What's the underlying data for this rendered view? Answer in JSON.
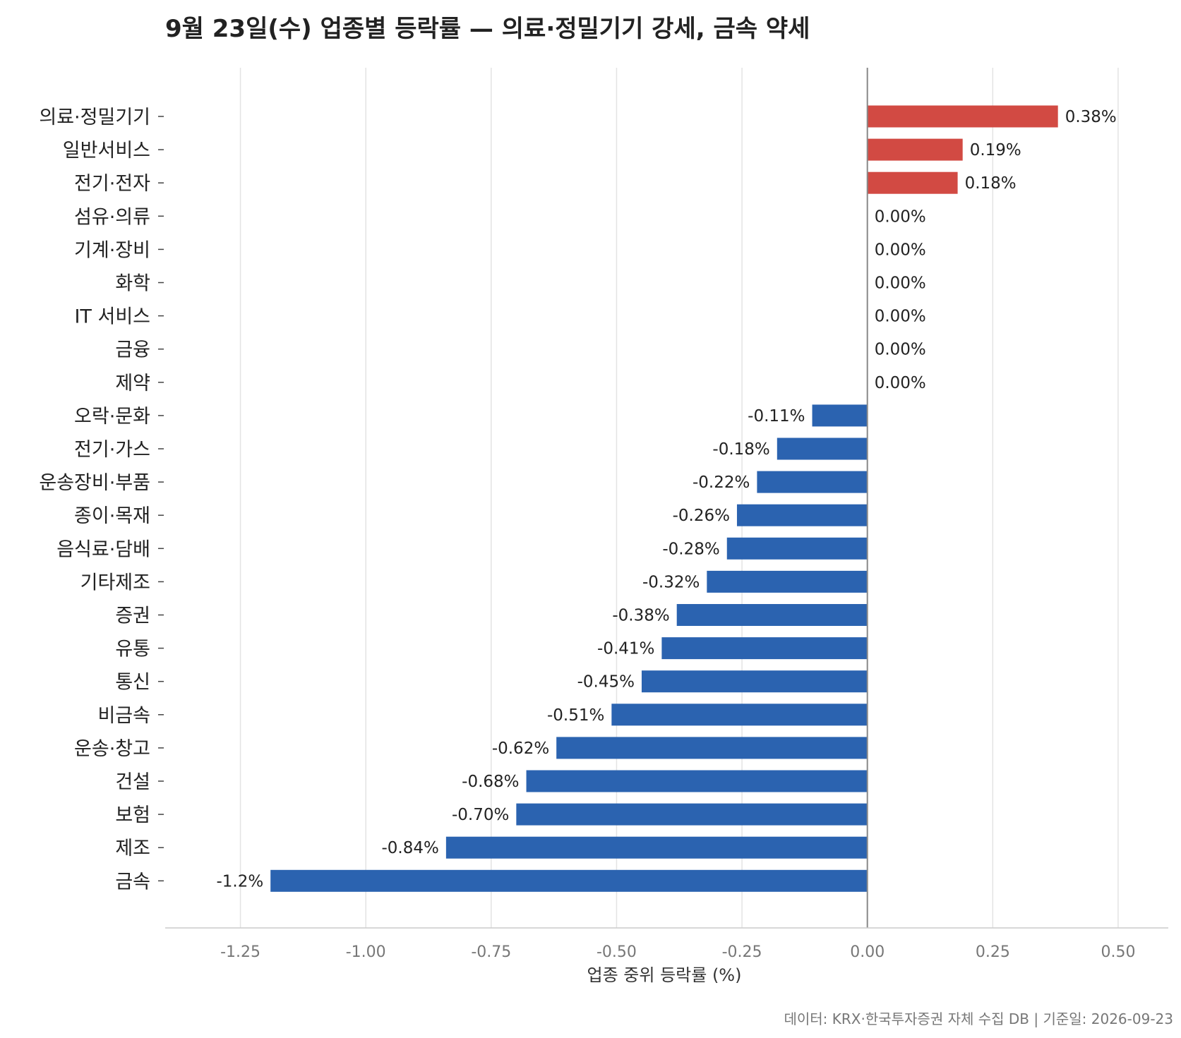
{
  "chart_data": {
    "type": "bar",
    "orientation": "horizontal",
    "title": "9월 23일(수) 업종별 등락률 — 의료·정밀기기 강세, 금속 약세",
    "xlabel": "업종 중위 등락률 (%)",
    "ylabel": "",
    "xlim": [
      -1.4,
      0.6
    ],
    "xticks": [
      -1.25,
      -1.0,
      -0.75,
      -0.5,
      -0.25,
      0.0,
      0.25,
      0.5
    ],
    "xtick_labels": [
      "-1.25",
      "-1.00",
      "-0.75",
      "-0.50",
      "-0.25",
      "0.00",
      "0.25",
      "0.50"
    ],
    "grid": "vertical",
    "legend": "none",
    "colors": {
      "positive": "#d24a43",
      "negative": "#2b63b0",
      "gridline": "#e3e3e3",
      "zero_line": "#888888",
      "axis": "#cccccc"
    },
    "categories": [
      "의료·정밀기기",
      "일반서비스",
      "전기·전자",
      "섬유·의류",
      "기계·장비",
      "화학",
      "IT 서비스",
      "금융",
      "제약",
      "오락·문화",
      "전기·가스",
      "운송장비·부품",
      "종이·목재",
      "음식료·담배",
      "기타제조",
      "증권",
      "유통",
      "통신",
      "비금속",
      "운송·창고",
      "건설",
      "보험",
      "제조",
      "금속"
    ],
    "values": [
      0.38,
      0.19,
      0.18,
      0.0,
      0.0,
      0.0,
      0.0,
      0.0,
      0.0,
      -0.11,
      -0.18,
      -0.22,
      -0.26,
      -0.28,
      -0.32,
      -0.38,
      -0.41,
      -0.45,
      -0.51,
      -0.62,
      -0.68,
      -0.7,
      -0.84,
      -1.19
    ],
    "value_labels": [
      "0.38%",
      "0.19%",
      "0.18%",
      "0.00%",
      "0.00%",
      "0.00%",
      "0.00%",
      "0.00%",
      "0.00%",
      "-0.11%",
      "-0.18%",
      "-0.22%",
      "-0.26%",
      "-0.28%",
      "-0.32%",
      "-0.38%",
      "-0.41%",
      "-0.45%",
      "-0.51%",
      "-0.62%",
      "-0.68%",
      "-0.70%",
      "-0.84%",
      "-1.2%"
    ],
    "source_note": "데이터: KRX·한국투자증권 자체 수집 DB  |  기준일: 2026-09-23"
  }
}
